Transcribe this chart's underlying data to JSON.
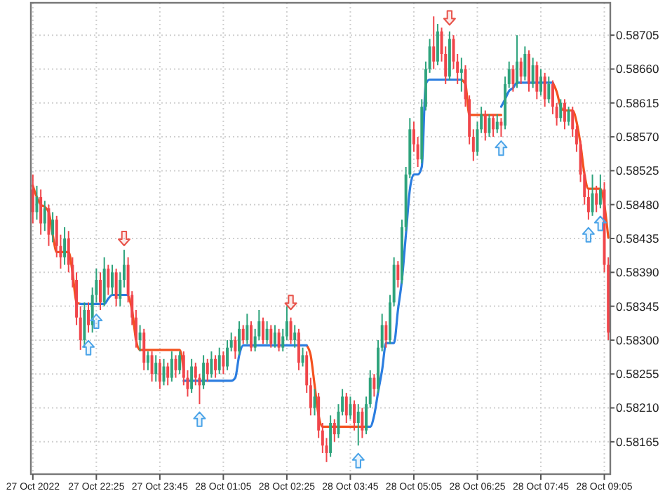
{
  "chart_data": {
    "type": "candlestick",
    "categories": [
      "27 Oct 2022",
      null,
      null,
      null,
      null,
      null,
      null,
      null,
      null,
      null,
      null,
      null,
      null,
      null,
      null,
      null,
      "27 Oct 22:25",
      null,
      null,
      null,
      null,
      null,
      null,
      null,
      null,
      null,
      null,
      null,
      null,
      null,
      null,
      null,
      "27 Oct 23:45",
      null,
      null,
      null,
      null,
      null,
      null,
      null,
      null,
      null,
      null,
      null,
      null,
      null,
      null,
      null,
      "28 Oct 01:05",
      null,
      null,
      null,
      null,
      null,
      null,
      null,
      null,
      null,
      null,
      null,
      null,
      null,
      null,
      null,
      "28 Oct 02:25",
      null,
      null,
      null,
      null,
      null,
      null,
      null,
      null,
      null,
      null,
      null,
      null,
      null,
      null,
      null,
      "28 Oct 03:45",
      null,
      null,
      null,
      null,
      null,
      null,
      null,
      null,
      null,
      null,
      null,
      null,
      null,
      null,
      null,
      "28 Oct 05:05",
      null,
      null,
      null,
      null,
      null,
      null,
      null,
      null,
      null,
      null,
      null,
      null,
      null,
      null,
      null,
      "28 Oct 06:25",
      null,
      null,
      null,
      null,
      null,
      null,
      null,
      null,
      null,
      null,
      null,
      null,
      null,
      null,
      null,
      "28 Oct 07:45",
      null,
      null,
      null,
      null,
      null,
      null,
      null,
      null,
      null,
      null,
      null,
      null,
      null,
      null,
      null,
      "28 Oct 09:05",
      null
    ],
    "ohlc": [
      [
        0.585,
        0.5852,
        0.58455,
        0.5847
      ],
      [
        0.5847,
        0.58505,
        0.5846,
        0.5849
      ],
      [
        0.5849,
        0.585,
        0.5844,
        0.58455
      ],
      [
        0.58455,
        0.58485,
        0.58445,
        0.58475
      ],
      [
        0.58475,
        0.5848,
        0.58425,
        0.5844
      ],
      [
        0.5844,
        0.5847,
        0.5843,
        0.5846
      ],
      [
        0.5846,
        0.58465,
        0.5841,
        0.58425
      ],
      [
        0.58425,
        0.5844,
        0.58395,
        0.5841
      ],
      [
        0.5841,
        0.5845,
        0.584,
        0.58435
      ],
      [
        0.58435,
        0.58445,
        0.5839,
        0.584
      ],
      [
        0.584,
        0.5841,
        0.5837,
        0.5838
      ],
      [
        0.5838,
        0.5839,
        0.5832,
        0.5833
      ],
      [
        0.5833,
        0.58345,
        0.58287,
        0.583
      ],
      [
        0.583,
        0.5835,
        0.5829,
        0.5834
      ],
      [
        0.5834,
        0.5835,
        0.5831,
        0.5832
      ],
      [
        0.5832,
        0.5837,
        0.5831,
        0.5836
      ],
      [
        0.5836,
        0.58395,
        0.5835,
        0.5838
      ],
      [
        0.5838,
        0.5839,
        0.5834,
        0.5835
      ],
      [
        0.5835,
        0.5841,
        0.58345,
        0.58395
      ],
      [
        0.58395,
        0.584,
        0.5836,
        0.5837
      ],
      [
        0.5837,
        0.584,
        0.5836,
        0.5839
      ],
      [
        0.5839,
        0.58395,
        0.58345,
        0.58355
      ],
      [
        0.58355,
        0.5839,
        0.58345,
        0.5838
      ],
      [
        0.5838,
        0.5842,
        0.5837,
        0.584
      ],
      [
        0.584,
        0.5841,
        0.5835,
        0.5836
      ],
      [
        0.5836,
        0.58365,
        0.5832,
        0.5833
      ],
      [
        0.5833,
        0.5834,
        0.5829,
        0.583
      ],
      [
        0.583,
        0.5832,
        0.58285,
        0.5831
      ],
      [
        0.5831,
        0.58315,
        0.5826,
        0.5827
      ],
      [
        0.5827,
        0.58285,
        0.5826,
        0.5828
      ],
      [
        0.5828,
        0.58285,
        0.58245,
        0.58255
      ],
      [
        0.58255,
        0.5828,
        0.58245,
        0.5827
      ],
      [
        0.5827,
        0.58275,
        0.58235,
        0.58245
      ],
      [
        0.58245,
        0.58275,
        0.5824,
        0.58265
      ],
      [
        0.58265,
        0.5827,
        0.5824,
        0.5825
      ],
      [
        0.5825,
        0.58285,
        0.58245,
        0.58275
      ],
      [
        0.58275,
        0.5828,
        0.5825,
        0.5826
      ],
      [
        0.5826,
        0.58285,
        0.58255,
        0.5828
      ],
      [
        0.5828,
        0.58285,
        0.5824,
        0.5825
      ],
      [
        0.5825,
        0.5826,
        0.58225,
        0.58235
      ],
      [
        0.58235,
        0.58275,
        0.5823,
        0.58265
      ],
      [
        0.58265,
        0.5827,
        0.5824,
        0.5825
      ],
      [
        0.5825,
        0.58255,
        0.58215,
        0.5824
      ],
      [
        0.5824,
        0.5828,
        0.58235,
        0.5827
      ],
      [
        0.5827,
        0.58275,
        0.58245,
        0.58255
      ],
      [
        0.58255,
        0.58285,
        0.5825,
        0.58275
      ],
      [
        0.58275,
        0.5828,
        0.5825,
        0.5826
      ],
      [
        0.5826,
        0.5829,
        0.58255,
        0.5828
      ],
      [
        0.5828,
        0.58285,
        0.58255,
        0.58265
      ],
      [
        0.58265,
        0.583,
        0.5826,
        0.5829
      ],
      [
        0.5829,
        0.5831,
        0.58285,
        0.583
      ],
      [
        0.583,
        0.58305,
        0.58275,
        0.58285
      ],
      [
        0.58285,
        0.58325,
        0.5828,
        0.58315
      ],
      [
        0.58315,
        0.5832,
        0.58295,
        0.583
      ],
      [
        0.583,
        0.58335,
        0.58295,
        0.5832
      ],
      [
        0.5832,
        0.58325,
        0.58285,
        0.5829
      ],
      [
        0.5829,
        0.58315,
        0.58285,
        0.58305
      ],
      [
        0.58305,
        0.5834,
        0.583,
        0.58325
      ],
      [
        0.58325,
        0.5833,
        0.58295,
        0.583
      ],
      [
        0.583,
        0.58325,
        0.58295,
        0.58315
      ],
      [
        0.58315,
        0.5832,
        0.5829,
        0.58295
      ],
      [
        0.58295,
        0.5832,
        0.5829,
        0.5831
      ],
      [
        0.5831,
        0.58315,
        0.58285,
        0.5829
      ],
      [
        0.5829,
        0.58315,
        0.58285,
        0.58305
      ],
      [
        0.58305,
        0.58345,
        0.583,
        0.58325
      ],
      [
        0.58325,
        0.5833,
        0.58295,
        0.583
      ],
      [
        0.583,
        0.5832,
        0.5829,
        0.5831
      ],
      [
        0.5831,
        0.58315,
        0.5826,
        0.5827
      ],
      [
        0.5827,
        0.5829,
        0.58265,
        0.5828
      ],
      [
        0.5828,
        0.58285,
        0.5823,
        0.5824
      ],
      [
        0.5824,
        0.5825,
        0.582,
        0.5821
      ],
      [
        0.5821,
        0.58235,
        0.582,
        0.58225
      ],
      [
        0.58225,
        0.5823,
        0.5817,
        0.5818
      ],
      [
        0.5818,
        0.5819,
        0.5815,
        0.5816
      ],
      [
        0.5816,
        0.5817,
        0.58138,
        0.5815
      ],
      [
        0.5815,
        0.582,
        0.58145,
        0.5819
      ],
      [
        0.5819,
        0.58195,
        0.58165,
        0.58175
      ],
      [
        0.58175,
        0.58215,
        0.5817,
        0.58205
      ],
      [
        0.58205,
        0.58235,
        0.582,
        0.58225
      ],
      [
        0.58225,
        0.5823,
        0.5819,
        0.582
      ],
      [
        0.582,
        0.58225,
        0.58195,
        0.58215
      ],
      [
        0.58215,
        0.5822,
        0.5818,
        0.5819
      ],
      [
        0.5819,
        0.58215,
        0.5816,
        0.58205
      ],
      [
        0.58205,
        0.5821,
        0.5817,
        0.5818
      ],
      [
        0.5818,
        0.58225,
        0.58175,
        0.58215
      ],
      [
        0.58215,
        0.5826,
        0.5821,
        0.5825
      ],
      [
        0.5825,
        0.58255,
        0.58225,
        0.58235
      ],
      [
        0.58235,
        0.583,
        0.5823,
        0.5829
      ],
      [
        0.5829,
        0.58335,
        0.58285,
        0.5832
      ],
      [
        0.5832,
        0.58325,
        0.5829,
        0.583
      ],
      [
        0.583,
        0.5836,
        0.58295,
        0.5835
      ],
      [
        0.5835,
        0.5841,
        0.58345,
        0.584
      ],
      [
        0.584,
        0.58405,
        0.5837,
        0.5838
      ],
      [
        0.5838,
        0.5846,
        0.58375,
        0.5845
      ],
      [
        0.5845,
        0.5853,
        0.58445,
        0.5852
      ],
      [
        0.5852,
        0.58595,
        0.58515,
        0.5858
      ],
      [
        0.5858,
        0.5859,
        0.5855,
        0.5856
      ],
      [
        0.5856,
        0.5857,
        0.5853,
        0.5854
      ],
      [
        0.5854,
        0.5862,
        0.58535,
        0.5861
      ],
      [
        0.5861,
        0.5867,
        0.58605,
        0.5866
      ],
      [
        0.5866,
        0.587,
        0.58655,
        0.5869
      ],
      [
        0.5869,
        0.5873,
        0.5866,
        0.5867
      ],
      [
        0.5867,
        0.5872,
        0.58665,
        0.5871
      ],
      [
        0.5871,
        0.58715,
        0.5867,
        0.5868
      ],
      [
        0.5868,
        0.5869,
        0.5864,
        0.5865
      ],
      [
        0.5865,
        0.5871,
        0.58645,
        0.587
      ],
      [
        0.587,
        0.58705,
        0.5866,
        0.5867
      ],
      [
        0.5867,
        0.5868,
        0.5864,
        0.58655
      ],
      [
        0.58655,
        0.58675,
        0.5863,
        0.5866
      ],
      [
        0.5866,
        0.58665,
        0.5861,
        0.5862
      ],
      [
        0.5862,
        0.58625,
        0.5856,
        0.5857
      ],
      [
        0.5857,
        0.5858,
        0.58538,
        0.5855
      ],
      [
        0.5855,
        0.5859,
        0.58545,
        0.5858
      ],
      [
        0.5858,
        0.5861,
        0.58575,
        0.586
      ],
      [
        0.586,
        0.58605,
        0.58565,
        0.58575
      ],
      [
        0.58575,
        0.586,
        0.5857,
        0.58595
      ],
      [
        0.58595,
        0.586,
        0.5857,
        0.5858
      ],
      [
        0.5858,
        0.586,
        0.58575,
        0.5859
      ],
      [
        0.5859,
        0.58595,
        0.5857,
        0.58585
      ],
      [
        0.58585,
        0.5865,
        0.5858,
        0.5864
      ],
      [
        0.5864,
        0.5867,
        0.58635,
        0.5866
      ],
      [
        0.5866,
        0.58665,
        0.5863,
        0.5864
      ],
      [
        0.5864,
        0.58705,
        0.58635,
        0.5867
      ],
      [
        0.5867,
        0.58675,
        0.5864,
        0.5865
      ],
      [
        0.5865,
        0.5869,
        0.58645,
        0.5868
      ],
      [
        0.5868,
        0.58685,
        0.5863,
        0.5864
      ],
      [
        0.5864,
        0.58675,
        0.58635,
        0.58665
      ],
      [
        0.58665,
        0.5867,
        0.5862,
        0.5863
      ],
      [
        0.5863,
        0.5866,
        0.58625,
        0.5865
      ],
      [
        0.5865,
        0.58655,
        0.5861,
        0.5862
      ],
      [
        0.5862,
        0.5865,
        0.58615,
        0.5864
      ],
      [
        0.5864,
        0.58645,
        0.586,
        0.5861
      ],
      [
        0.5861,
        0.58615,
        0.58585,
        0.58595
      ],
      [
        0.58595,
        0.5862,
        0.5859,
        0.58615
      ],
      [
        0.58615,
        0.5862,
        0.5858,
        0.5859
      ],
      [
        0.5859,
        0.5861,
        0.58585,
        0.58605
      ],
      [
        0.58605,
        0.5861,
        0.5857,
        0.5858
      ],
      [
        0.5858,
        0.58585,
        0.5855,
        0.5856
      ],
      [
        0.5856,
        0.58565,
        0.5851,
        0.5852
      ],
      [
        0.5852,
        0.58525,
        0.5848,
        0.5849
      ],
      [
        0.5849,
        0.585,
        0.5846,
        0.5847
      ],
      [
        0.5847,
        0.5852,
        0.58465,
        0.58495
      ],
      [
        0.58495,
        0.58505,
        0.5847,
        0.5848
      ],
      [
        0.5848,
        0.5852,
        0.58475,
        0.585
      ],
      [
        0.585,
        0.5851,
        0.5839,
        0.584
      ],
      [
        0.584,
        0.5841,
        0.583,
        0.5831
      ]
    ],
    "colors": [
      "#f0454a",
      "#2ea37c",
      "#f0454a",
      "#2ea37c",
      "#f0454a",
      "#2ea37c",
      "#f0454a",
      "#f0454a",
      "#2ea37c",
      "#f0454a",
      "#f0454a",
      "#f0454a",
      "#f0454a",
      "#2ea37c",
      "#f0454a",
      "#2ea37c",
      "#2ea37c",
      "#f0454a",
      "#2ea37c",
      "#f0454a",
      "#2ea37c",
      "#f0454a",
      "#2ea37c",
      "#2ea37c",
      "#f0454a",
      "#f0454a",
      "#f0454a",
      "#2ea37c",
      "#f0454a",
      "#2ea37c",
      "#f0454a",
      "#2ea37c",
      "#f0454a",
      "#2ea37c",
      "#f0454a",
      "#2ea37c",
      "#f0454a",
      "#2ea37c",
      "#f0454a",
      "#f0454a",
      "#2ea37c",
      "#f0454a",
      "#f0454a",
      "#2ea37c",
      "#f0454a",
      "#2ea37c",
      "#f0454a",
      "#2ea37c",
      "#f0454a",
      "#2ea37c",
      "#2ea37c",
      "#f0454a",
      "#2ea37c",
      "#f0454a",
      "#2ea37c",
      "#f0454a",
      "#2ea37c",
      "#2ea37c",
      "#f0454a",
      "#2ea37c",
      "#f0454a",
      "#2ea37c",
      "#f0454a",
      "#2ea37c",
      "#2ea37c",
      "#f0454a",
      "#2ea37c",
      "#f0454a",
      "#2ea37c",
      "#f0454a",
      "#f0454a",
      "#2ea37c",
      "#f0454a",
      "#f0454a",
      "#f0454a",
      "#2ea37c",
      "#f0454a",
      "#2ea37c",
      "#2ea37c",
      "#f0454a",
      "#2ea37c",
      "#f0454a",
      "#2ea37c",
      "#f0454a",
      "#2ea37c",
      "#2ea37c",
      "#f0454a",
      "#2ea37c",
      "#2ea37c",
      "#f0454a",
      "#2ea37c",
      "#2ea37c",
      "#f0454a",
      "#2ea37c",
      "#2ea37c",
      "#2ea37c",
      "#f0454a",
      "#f0454a",
      "#2ea37c",
      "#2ea37c",
      "#2ea37c",
      "#f0454a",
      "#2ea37c",
      "#f0454a",
      "#f0454a",
      "#2ea37c",
      "#f0454a",
      "#f0454a",
      "#2ea37c",
      "#f0454a",
      "#f0454a",
      "#f0454a",
      "#2ea37c",
      "#2ea37c",
      "#f0454a",
      "#2ea37c",
      "#f0454a",
      "#2ea37c",
      "#f0454a",
      "#2ea37c",
      "#2ea37c",
      "#f0454a",
      "#2ea37c",
      "#f0454a",
      "#2ea37c",
      "#f0454a",
      "#2ea37c",
      "#f0454a",
      "#2ea37c",
      "#f0454a",
      "#2ea37c",
      "#f0454a",
      "#f0454a",
      "#2ea37c",
      "#f0454a",
      "#2ea37c",
      "#f0454a",
      "#f0454a",
      "#f0454a",
      "#f0454a",
      "#f0454a",
      "#2ea37c",
      "#f0454a",
      "#2ea37c",
      "#f0454a",
      "#f0454a"
    ],
    "series": [
      {
        "type": "line",
        "color": "#f4511e",
        "values": [
          0.58505,
          0.5849,
          0.5848,
          0.58477,
          0.5847,
          0.5844,
          0.58417,
          0.58417,
          0.58417,
          0.58417,
          0.5839,
          0.5835,
          0.58348,
          null,
          null,
          null,
          null,
          null,
          null,
          null,
          null,
          null,
          null,
          null,
          0.5836,
          0.5834,
          0.583,
          0.58287,
          0.58287,
          0.58287,
          0.58287,
          0.58287,
          0.58287,
          0.58287,
          0.58287,
          0.58287,
          0.58287,
          0.58287,
          0.5826,
          null,
          null,
          null,
          null,
          null,
          null,
          null,
          null,
          null,
          null,
          null,
          null,
          null,
          null,
          null,
          null,
          null,
          null,
          null,
          null,
          null,
          null,
          null,
          null,
          null,
          null,
          null,
          null,
          null,
          null,
          0.58293,
          0.5828,
          0.5824,
          0.582,
          0.58185,
          0.58185,
          0.58185,
          0.58185,
          0.58185,
          0.58185,
          0.58185,
          0.58185,
          0.58185,
          0.58185,
          0.58185,
          0.58185,
          null,
          null,
          null,
          null,
          null,
          null,
          null,
          null,
          null,
          null,
          null,
          null,
          null,
          null,
          null,
          null,
          null,
          null,
          null,
          null,
          null,
          null,
          null,
          0.58646,
          0.5864,
          0.58599,
          0.58599,
          0.58599,
          0.58599,
          0.58599,
          0.58599,
          0.58599,
          0.58599,
          0.58599,
          null,
          null,
          null,
          null,
          null,
          null,
          null,
          null,
          null,
          null,
          null,
          null,
          0.58642,
          0.5863,
          0.5861,
          0.58605,
          0.58605,
          0.58605,
          0.5859,
          0.5856,
          0.5852,
          0.58501,
          0.58501,
          0.58501,
          0.58501,
          0.5848,
          0.58436
        ]
      },
      {
        "type": "line",
        "color": "#2b7de0",
        "values": [
          null,
          null,
          null,
          null,
          null,
          null,
          null,
          null,
          null,
          null,
          null,
          null,
          0.58348,
          0.58348,
          0.58348,
          0.58348,
          0.58348,
          0.58348,
          0.58348,
          0.58355,
          0.5836,
          0.5836,
          0.5836,
          0.5836,
          0.5836,
          null,
          null,
          null,
          null,
          null,
          null,
          null,
          null,
          null,
          null,
          null,
          null,
          null,
          0.58246,
          0.58246,
          0.58246,
          0.58246,
          0.58246,
          0.58246,
          0.58246,
          0.58246,
          0.58246,
          0.58246,
          0.58246,
          0.58246,
          0.58246,
          0.5825,
          0.5828,
          0.58293,
          0.58293,
          0.58293,
          0.58293,
          0.58293,
          0.58293,
          0.58293,
          0.58293,
          0.58293,
          0.58293,
          0.58293,
          0.58293,
          0.58293,
          0.58293,
          0.58293,
          0.58293,
          0.58293,
          null,
          null,
          null,
          null,
          null,
          null,
          null,
          null,
          null,
          null,
          null,
          null,
          null,
          null,
          0.58185,
          0.58185,
          0.582,
          0.58231,
          0.5826,
          0.58296,
          0.58296,
          0.58296,
          0.5834,
          0.5838,
          0.5844,
          0.585,
          0.5852,
          0.5852,
          0.5853,
          0.5864,
          0.58646,
          0.58646,
          0.58646,
          0.58646,
          0.58646,
          0.58646,
          0.58646,
          0.58646,
          0.58646,
          null,
          null,
          null,
          null,
          null,
          null,
          null,
          null,
          null,
          0.5861,
          0.5862,
          0.58631,
          0.58635,
          0.58642,
          0.58642,
          0.58642,
          0.58642,
          0.58642,
          0.58642,
          0.58642,
          0.58642,
          0.58642,
          0.58642,
          null,
          null,
          null,
          null,
          null,
          null,
          null,
          null,
          null,
          null,
          null,
          null,
          null,
          null
        ]
      },
      {
        "type": "scatter",
        "color": "#e8534a",
        "values": [
          null,
          null,
          null,
          null,
          null,
          null,
          null,
          null,
          null,
          null,
          null,
          null,
          null,
          null,
          null,
          null,
          null,
          null,
          null,
          null,
          null,
          null,
          null,
          0.58435,
          null,
          null,
          null,
          null,
          null,
          null,
          null,
          null,
          null,
          null,
          null,
          null,
          null,
          null,
          null,
          null,
          null,
          null,
          null,
          null,
          null,
          null,
          null,
          null,
          null,
          null,
          null,
          null,
          null,
          null,
          null,
          null,
          null,
          null,
          null,
          null,
          null,
          null,
          null,
          null,
          null,
          0.5835,
          null,
          null,
          null,
          null,
          null,
          null,
          null,
          null,
          null,
          null,
          null,
          null,
          null,
          null,
          null,
          null,
          null,
          null,
          null,
          null,
          null,
          null,
          null,
          null,
          null,
          null,
          null,
          null,
          null,
          null,
          null,
          null,
          null,
          null,
          null,
          null,
          null,
          null,
          null,
          0.58728,
          null,
          null,
          null,
          null,
          null,
          null,
          null,
          null,
          null,
          null,
          null,
          null,
          null,
          null,
          null,
          null,
          null,
          null,
          null,
          null,
          null,
          null,
          null,
          null,
          null,
          null,
          null,
          null,
          null,
          null,
          null,
          null,
          null,
          null,
          null,
          null,
          null,
          null,
          null,
          null
        ]
      },
      {
        "type": "scatter",
        "color": "#4aa3e8",
        "values": [
          null,
          null,
          null,
          null,
          null,
          null,
          null,
          null,
          null,
          null,
          null,
          null,
          null,
          null,
          0.5829,
          null,
          0.58325,
          null,
          null,
          null,
          null,
          null,
          null,
          null,
          null,
          null,
          null,
          null,
          null,
          null,
          null,
          null,
          null,
          null,
          null,
          null,
          null,
          null,
          null,
          null,
          null,
          null,
          0.58195,
          null,
          null,
          null,
          null,
          null,
          null,
          null,
          null,
          null,
          null,
          null,
          null,
          null,
          null,
          null,
          null,
          null,
          null,
          null,
          null,
          null,
          null,
          null,
          null,
          null,
          null,
          null,
          null,
          null,
          null,
          null,
          null,
          null,
          null,
          null,
          null,
          null,
          null,
          null,
          0.5814,
          null,
          null,
          null,
          null,
          null,
          null,
          null,
          null,
          null,
          null,
          null,
          null,
          null,
          null,
          null,
          null,
          null,
          null,
          null,
          null,
          null,
          null,
          null,
          null,
          null,
          null,
          null,
          null,
          null,
          null,
          null,
          null,
          null,
          null,
          null,
          0.58555,
          null,
          null,
          null,
          null,
          null,
          null,
          null,
          null,
          null,
          null,
          null,
          null,
          null,
          null,
          null,
          null,
          null,
          null,
          null,
          null,
          null,
          0.5844,
          null,
          null,
          0.58455,
          null,
          null
        ]
      }
    ],
    "ylim": [
      0.58122,
      0.58748
    ],
    "yticks": [
      0.58165,
      {
        "value": 0.5821,
        "label": "0.58210"
      },
      0.58255,
      {
        "value": 0.583,
        "label": "0.58300"
      },
      0.58345,
      {
        "value": 0.5839,
        "label": "0.58390"
      },
      0.58435,
      {
        "value": 0.5848,
        "label": "0.58480"
      },
      0.58525,
      {
        "value": 0.5857,
        "label": "0.58570"
      },
      0.58615,
      {
        "value": 0.5866,
        "label": "0.58660"
      },
      0.58705
    ],
    "grid": true
  }
}
